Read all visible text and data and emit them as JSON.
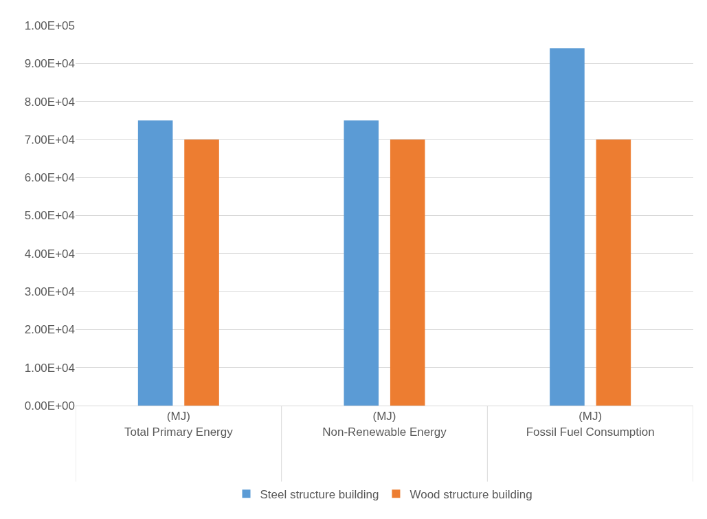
{
  "chart_data": {
    "type": "bar",
    "categories": [
      "(MJ)\nTotal Primary Energy",
      "(MJ)\nNon-Renewable Energy",
      "(MJ)\nFossil Fuel Consumption"
    ],
    "series": [
      {
        "name": "Steel structure building",
        "color": "#5b9bd5",
        "values": [
          75000,
          75000,
          94000
        ]
      },
      {
        "name": "Wood structure building",
        "color": "#ed7d31",
        "values": [
          70000,
          70000,
          70000
        ]
      }
    ],
    "ylim": [
      0,
      100000
    ],
    "yticks": [
      {
        "value": 0,
        "label": "0.00E+00"
      },
      {
        "value": 10000,
        "label": "1.00E+04"
      },
      {
        "value": 20000,
        "label": "2.00E+04"
      },
      {
        "value": 30000,
        "label": "3.00E+04"
      },
      {
        "value": 40000,
        "label": "4.00E+04"
      },
      {
        "value": 50000,
        "label": "5.00E+04"
      },
      {
        "value": 60000,
        "label": "6.00E+04"
      },
      {
        "value": 70000,
        "label": "7.00E+04"
      },
      {
        "value": 80000,
        "label": "8.00E+04"
      },
      {
        "value": 90000,
        "label": "9.00E+04"
      },
      {
        "value": 100000,
        "label": "1.00E+05"
      }
    ],
    "grid": "y",
    "legend": "bottom"
  }
}
